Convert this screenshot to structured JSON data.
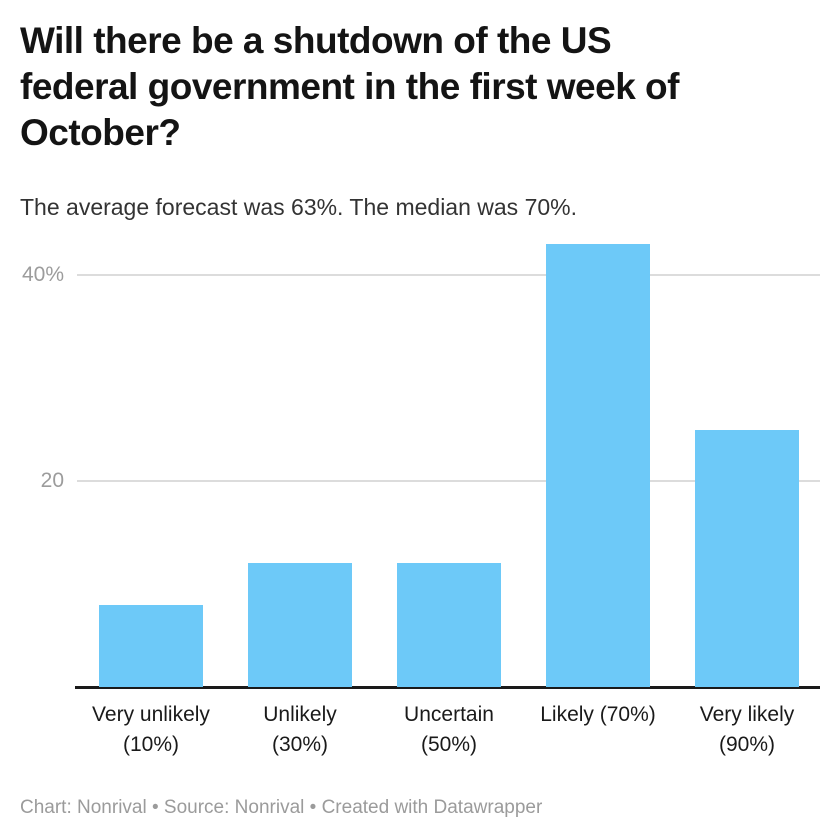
{
  "header": {
    "title_lines": [
      "Will there be a shutdown of the US",
      "federal government in the first week of",
      "October?"
    ],
    "subtitle": "The average forecast was 63%. The median was 70%."
  },
  "chart_data": {
    "type": "bar",
    "title": "Will there be a shutdown of the US federal government in the first week of October?",
    "subtitle": "The average forecast was 63%. The median was 70%.",
    "categories": [
      "Very unlikely (10%)",
      "Unlikely (30%)",
      "Uncertain (50%)",
      "Likely (70%)",
      "Very likely (90%)"
    ],
    "category_label_lines": [
      [
        "Very unlikely",
        "(10%)"
      ],
      [
        "Unlikely",
        "(30%)"
      ],
      [
        "Uncertain",
        "(50%)"
      ],
      [
        "Likely (70%)"
      ],
      [
        "Very likely",
        "(90%)"
      ]
    ],
    "values": [
      8,
      12,
      12,
      43,
      25
    ],
    "unit": "%",
    "xlabel": "",
    "ylabel": "",
    "ylim": [
      0,
      44
    ],
    "yticks": [
      {
        "value": 20,
        "label": "20"
      },
      {
        "value": 40,
        "label": "40%"
      }
    ],
    "grid": true,
    "legend_position": "none",
    "bar_color": "#6dc9f8"
  },
  "colors": {
    "bar": "#6dc9f8",
    "title": "#141414",
    "subtitle": "#333333",
    "axis": "#1a1a1a",
    "grid": "#dcdcdc",
    "tick_label": "#9c9c9c",
    "footer": "#9b9b9b",
    "background": "#ffffff"
  },
  "footer": {
    "text": "Chart: Nonrival • Source: Nonrival • Created with Datawrapper"
  }
}
